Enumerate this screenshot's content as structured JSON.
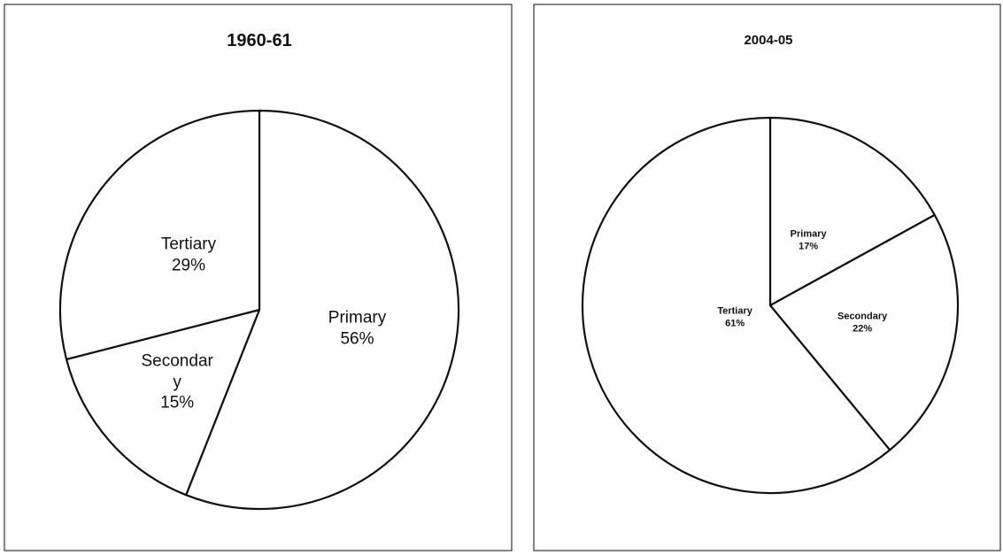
{
  "chart_data": [
    {
      "type": "pie",
      "title": "1960-61",
      "categories": [
        "Primary",
        "Secondary",
        "Tertiary"
      ],
      "values": [
        56,
        15,
        29
      ],
      "value_labels": [
        "56%",
        "15%",
        "29%"
      ]
    },
    {
      "type": "pie",
      "title": "2004-05",
      "categories": [
        "Primary",
        "Secondary",
        "Tertiary"
      ],
      "values": [
        17,
        22,
        61
      ],
      "value_labels": [
        "17%",
        "22%",
        "61%"
      ]
    }
  ]
}
